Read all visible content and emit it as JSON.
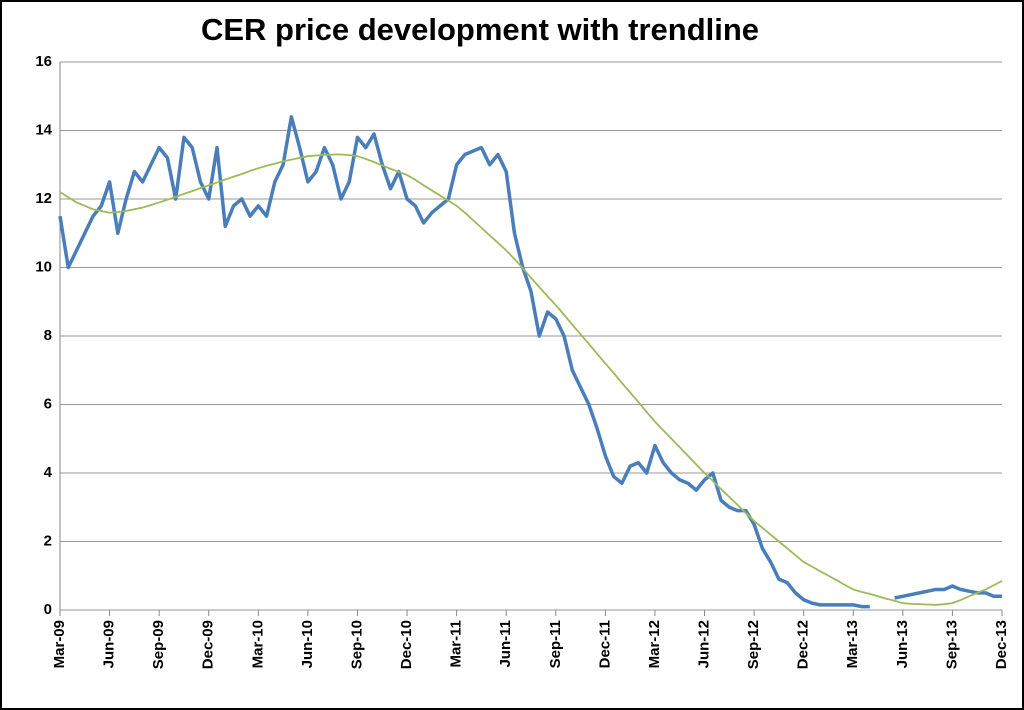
{
  "chart_data": {
    "type": "line",
    "title": "CER price development with trendline",
    "categories": [
      "Mar-09",
      null,
      null,
      null,
      null,
      null,
      "Jun-09",
      null,
      null,
      null,
      null,
      null,
      "Sep-09",
      null,
      null,
      null,
      null,
      null,
      "Dec-09",
      null,
      null,
      null,
      null,
      null,
      "Mar-10",
      null,
      null,
      null,
      null,
      null,
      "Jun-10",
      null,
      null,
      null,
      null,
      null,
      "Sep-10",
      null,
      null,
      null,
      null,
      null,
      "Dec-10",
      null,
      null,
      null,
      null,
      null,
      "Mar-11",
      null,
      null,
      null,
      null,
      null,
      "Jun-11",
      null,
      null,
      null,
      null,
      null,
      "Sep-11",
      null,
      null,
      null,
      null,
      null,
      "Dec-11",
      null,
      null,
      null,
      null,
      null,
      "Mar-12",
      null,
      null,
      null,
      null,
      null,
      "Jun-12",
      null,
      null,
      null,
      null,
      null,
      "Sep-12",
      null,
      null,
      null,
      null,
      null,
      "Dec-12",
      null,
      null,
      null,
      null,
      null,
      "Mar-13",
      null,
      null,
      null,
      null,
      null,
      "Jun-13",
      null,
      null,
      null,
      null,
      null,
      "Sep-13",
      null,
      null,
      null,
      null,
      null,
      "Dec-13"
    ],
    "series": [
      {
        "color": "#4a7ebb",
        "values": [
          11.5,
          10.0,
          10.5,
          11.0,
          11.5,
          11.8,
          12.5,
          11.0,
          12.0,
          12.8,
          12.5,
          13.0,
          13.5,
          13.2,
          12.0,
          13.8,
          13.5,
          12.5,
          12.0,
          13.5,
          11.2,
          11.8,
          12.0,
          11.5,
          11.8,
          11.5,
          12.5,
          13.0,
          14.4,
          13.5,
          12.5,
          12.8,
          13.5,
          13.0,
          12.0,
          12.5,
          13.8,
          13.5,
          13.9,
          13.0,
          12.3,
          12.8,
          12.0,
          11.8,
          11.3,
          11.6,
          11.8,
          12.0,
          13.0,
          13.3,
          13.4,
          13.5,
          13.0,
          13.3,
          12.8,
          11.0,
          10.0,
          9.3,
          8.0,
          8.7,
          8.5,
          8.0,
          7.0,
          6.5,
          6.0,
          5.3,
          4.5,
          3.9,
          3.7,
          4.2,
          4.3,
          4.0,
          4.8,
          4.3,
          4.0,
          3.8,
          3.7,
          3.5,
          3.8,
          4.0,
          3.2,
          3.0,
          2.9,
          2.9,
          2.5,
          1.8,
          1.4,
          0.9,
          0.8,
          0.5,
          0.3,
          0.2,
          0.15,
          0.15,
          0.15,
          0.15,
          0.15,
          0.1,
          0.1,
          null,
          null,
          0.35,
          0.4,
          0.45,
          0.5,
          0.55,
          0.6,
          0.6,
          0.7,
          0.6,
          0.55,
          0.5,
          0.5,
          0.4,
          0.4
        ]
      },
      {
        "color": "#9bbb59",
        "values": [
          12.2,
          12.05,
          11.9,
          11.8,
          11.7,
          11.65,
          11.6,
          11.62,
          11.65,
          11.7,
          11.75,
          11.82,
          11.9,
          11.98,
          12.06,
          12.15,
          12.23,
          12.32,
          12.4,
          12.48,
          12.57,
          12.65,
          12.73,
          12.82,
          12.9,
          12.97,
          13.03,
          13.1,
          13.15,
          13.2,
          13.25,
          13.27,
          13.29,
          13.3,
          13.3,
          13.28,
          13.25,
          13.17,
          13.08,
          12.98,
          12.88,
          12.79,
          12.7,
          12.56,
          12.4,
          12.25,
          12.1,
          11.95,
          11.8,
          11.6,
          11.38,
          11.16,
          10.94,
          10.72,
          10.5,
          10.25,
          9.98,
          9.7,
          9.43,
          9.16,
          8.9,
          8.62,
          8.33,
          8.05,
          7.77,
          7.48,
          7.2,
          6.92,
          6.63,
          6.35,
          6.07,
          5.78,
          5.5,
          5.25,
          5.0,
          4.75,
          4.5,
          4.25,
          4.0,
          3.77,
          3.53,
          3.3,
          3.07,
          2.83,
          2.6,
          2.4,
          2.2,
          2.0,
          1.8,
          1.6,
          1.4,
          1.27,
          1.13,
          1.0,
          0.87,
          0.73,
          0.6,
          0.53,
          0.47,
          0.4,
          0.33,
          0.27,
          0.2,
          0.18,
          0.17,
          0.16,
          0.15,
          0.17,
          0.2,
          0.29,
          0.4,
          0.5,
          0.6,
          0.72,
          0.85
        ]
      }
    ],
    "ylim": [
      0,
      16
    ],
    "yticks": [
      0,
      2,
      4,
      6,
      8,
      10,
      12,
      14,
      16
    ],
    "grid": true
  }
}
